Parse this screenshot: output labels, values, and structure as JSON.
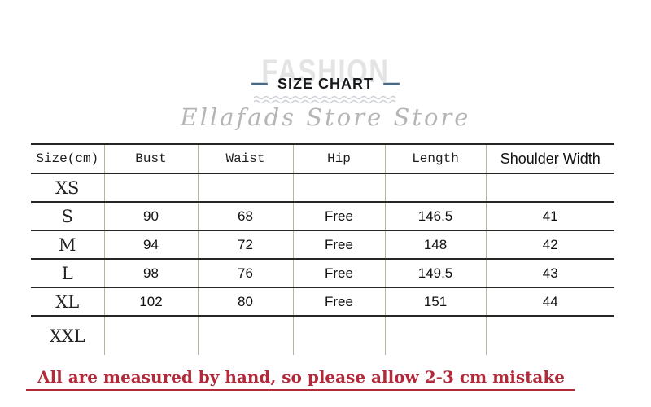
{
  "header": {
    "watermark": "FASHION",
    "title": "SIZE CHART",
    "dash_decoration": "—",
    "store_name": "Ellafads Store Store"
  },
  "size_table": {
    "columns": [
      "Size(cm)",
      "Bust",
      "Waist",
      "Hip",
      "Length",
      "Shoulder Width"
    ],
    "rows": [
      [
        "XS",
        "",
        "",
        "",
        "",
        ""
      ],
      [
        "S",
        "90",
        "68",
        "Free",
        "146.5",
        "41"
      ],
      [
        "M",
        "94",
        "72",
        "Free",
        "148",
        "42"
      ],
      [
        "L",
        "98",
        "76",
        "Free",
        "149.5",
        "43"
      ],
      [
        "XL",
        "102",
        "80",
        "Free",
        "151",
        "44"
      ],
      [
        "XXL",
        "",
        "",
        "",
        "",
        ""
      ]
    ]
  },
  "footnote": {
    "text": "All are measured by hand, so please allow 2-3 cm mistake"
  },
  "colors": {
    "accent_dash_blue": "#4a6882",
    "note_red": "#b2293a",
    "watermark_gray": "#e4e4e4",
    "store_name_gray": "#b5b5b5",
    "table_horizontal_line": "#262626",
    "table_vertical_line": "#b8b49e",
    "wave_divider_gray": "#ccd1d8"
  }
}
